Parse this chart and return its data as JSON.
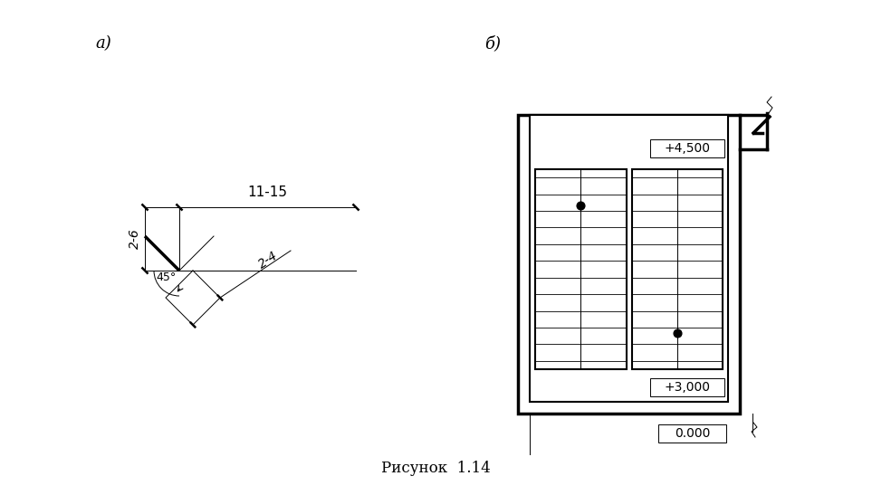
{
  "title_a": "а)",
  "title_b": "б)",
  "caption": "Рисунок  1.14",
  "fig_width": 9.63,
  "fig_height": 5.47,
  "bg_color": "#ffffff"
}
